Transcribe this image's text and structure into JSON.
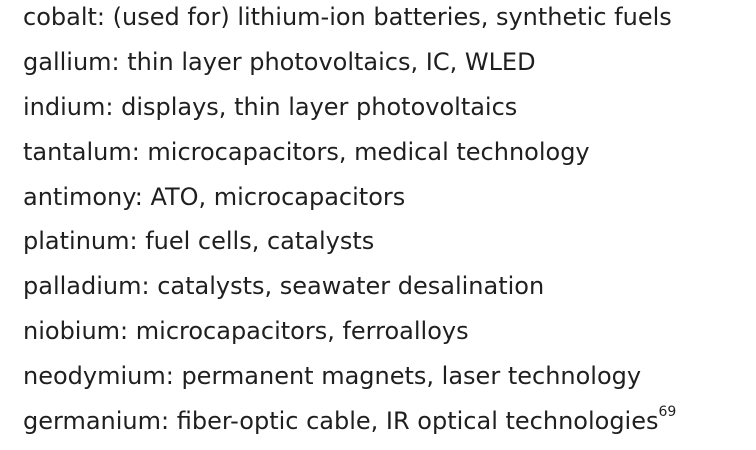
{
  "lines": [
    {
      "text": "cobalt: (used for) lithium-ion batteries, synthetic fuels"
    },
    {
      "text": "gallium: thin layer photovoltaics, IC, WLED"
    },
    {
      "text": "indium: displays, thin layer photovoltaics"
    },
    {
      "text": "tantalum: microcapacitors, medical technology"
    },
    {
      "text": "antimony: ATO, microcapacitors"
    },
    {
      "text": "platinum: fuel cells, catalysts"
    },
    {
      "text": "palladium: catalysts, seawater desalination"
    },
    {
      "text": "niobium: microcapacitors, ferroalloys"
    },
    {
      "text": "neodymium: permanent magnets, laser technology"
    },
    {
      "text": "germanium: fiber-optic cable, IR optical technologies",
      "footnote": "69"
    }
  ]
}
